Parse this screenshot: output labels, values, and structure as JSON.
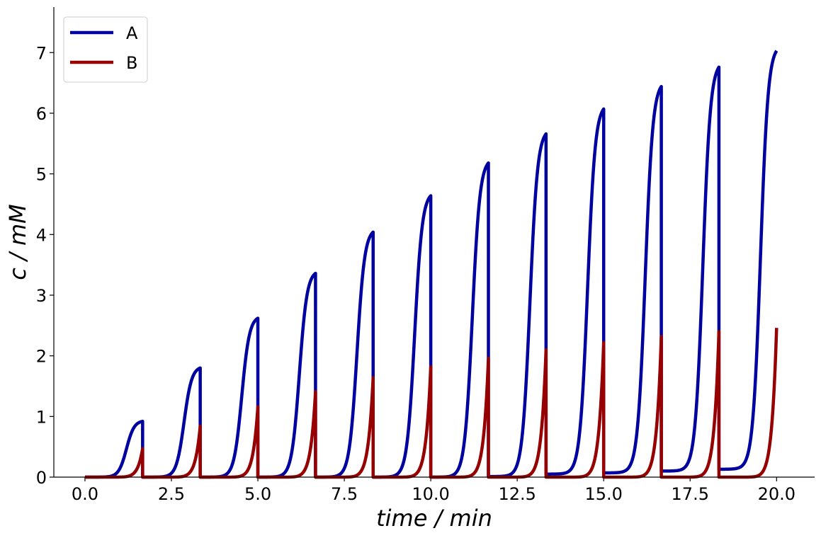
{
  "chart_data": {
    "type": "line",
    "title": "",
    "xlabel": "time / min",
    "ylabel": "c / mM",
    "xlim": [
      -0.9,
      21.1
    ],
    "ylim": [
      0,
      7.75
    ],
    "xticks": [
      0,
      2.5,
      5,
      7.5,
      10,
      12.5,
      15,
      17.5,
      20
    ],
    "xtick_labels": [
      "0.0",
      "2.5",
      "5.0",
      "7.5",
      "10.0",
      "12.5",
      "15.0",
      "17.5",
      "20.0"
    ],
    "yticks": [
      0,
      1,
      2,
      3,
      4,
      5,
      6,
      7
    ],
    "ytick_labels": [
      "0",
      "1",
      "2",
      "3",
      "4",
      "5",
      "6",
      "7"
    ],
    "grid": false,
    "legend_position": "top-left",
    "pulse_period": 1.667,
    "series": [
      {
        "name": "A",
        "color": "#0000a0",
        "peak_times": [
          1.667,
          3.333,
          5.0,
          6.667,
          8.333,
          10.0,
          11.667,
          13.333,
          15.0,
          16.667,
          18.333,
          20.0
        ],
        "peak_values": [
          0.92,
          1.8,
          2.62,
          3.36,
          4.04,
          4.64,
          5.18,
          5.66,
          6.07,
          6.44,
          6.76,
          7.03
        ],
        "reset_values": [
          0,
          0,
          0,
          0,
          0,
          0,
          0.01,
          0.05,
          0.07,
          0.1,
          0.13
        ]
      },
      {
        "name": "B",
        "color": "#960000",
        "peak_times": [
          1.667,
          3.333,
          5.0,
          6.667,
          8.333,
          10.0,
          11.667,
          13.333,
          15.0,
          16.667,
          18.333,
          20.0
        ],
        "peak_values": [
          0.47,
          0.84,
          1.16,
          1.41,
          1.64,
          1.82,
          1.96,
          2.1,
          2.22,
          2.32,
          2.4,
          2.46
        ]
      }
    ]
  }
}
